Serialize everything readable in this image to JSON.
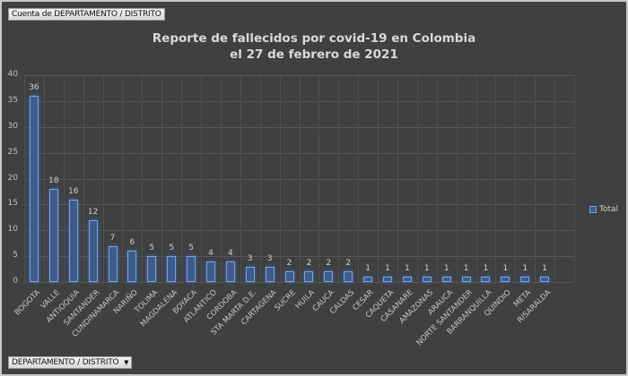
{
  "field_buttons": {
    "values_field": "Cuenta de DEPARTAMENTO / DISTRITO",
    "axis_field": "DEPARTAMENTO / DISTRITO",
    "axis_dropdown_icon": "▼"
  },
  "title": {
    "line1": "Reporte de fallecidos por covid-19 en Colombia",
    "line2": "el 27 de febrero de 2021"
  },
  "legend": {
    "label": "Total"
  },
  "colors": {
    "background": "#404040",
    "bar_fill": "#3d5c8c",
    "bar_border": "#7aa3dc",
    "text": "#d9d9d9"
  },
  "chart_data": {
    "type": "bar",
    "title": "Reporte de fallecidos por covid-19 en Colombia el 27 de febrero de 2021",
    "xlabel": "",
    "ylabel": "",
    "ylim": [
      0,
      40
    ],
    "yticks": [
      0,
      5,
      10,
      15,
      20,
      25,
      30,
      35,
      40
    ],
    "grid": true,
    "legend_position": "right",
    "categories": [
      "BOGOTA",
      "VALLE",
      "ANTIOQUIA",
      "SANTANDER",
      "CUNDINAMARCA",
      "NARIÑO",
      "TOLIMA",
      "MAGDALENA",
      "BOYACA",
      "ATLANTICO",
      "CORDOBA",
      "STA MARTA D.E.",
      "CARTAGENA",
      "SUCRE",
      "HUILA",
      "CAUCA",
      "CALDAS",
      "CESAR",
      "CAQUETA",
      "CASANARE",
      "AMAZONAS",
      "ARAUCA",
      "NORTE SANTANDER",
      "BARRANQUILLA",
      "QUINDIO",
      "META",
      "RISARALDA"
    ],
    "series": [
      {
        "name": "Total",
        "values": [
          36,
          18,
          16,
          12,
          7,
          6,
          5,
          5,
          5,
          4,
          4,
          3,
          3,
          2,
          2,
          2,
          2,
          1,
          1,
          1,
          1,
          1,
          1,
          1,
          1,
          1,
          1
        ]
      }
    ]
  }
}
